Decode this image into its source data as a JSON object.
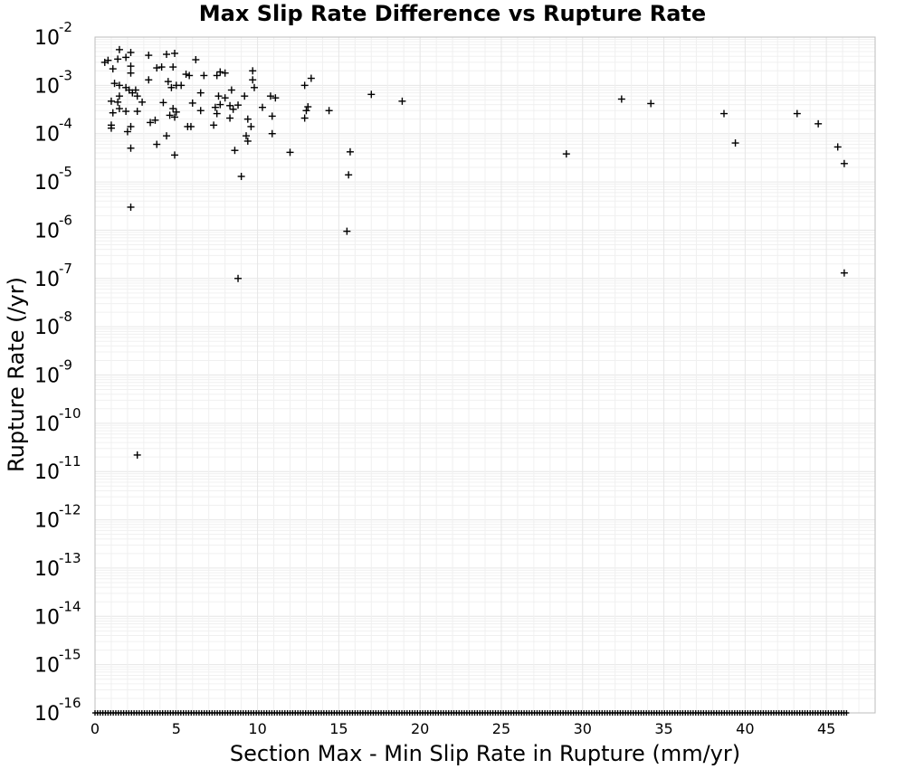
{
  "chart_data": {
    "type": "scatter",
    "title": "Max Slip Rate Difference vs Rupture Rate",
    "xlabel": "Section Max - Min Slip Rate in Rupture (mm/yr)",
    "ylabel": "Rupture Rate (/yr)",
    "x_scale": "linear",
    "y_scale": "log",
    "xlim": [
      0,
      48
    ],
    "ylim": [
      1e-16,
      0.01
    ],
    "x_ticks": [
      "0",
      "5",
      "10",
      "15",
      "20",
      "25",
      "30",
      "35",
      "40",
      "45"
    ],
    "y_ticks": [
      {
        "base": "10",
        "exp": "-16"
      },
      {
        "base": "10",
        "exp": "-15"
      },
      {
        "base": "10",
        "exp": "-14"
      },
      {
        "base": "10",
        "exp": "-13"
      },
      {
        "base": "10",
        "exp": "-12"
      },
      {
        "base": "10",
        "exp": "-11"
      },
      {
        "base": "10",
        "exp": "-10"
      },
      {
        "base": "10",
        "exp": "-9"
      },
      {
        "base": "10",
        "exp": "-8"
      },
      {
        "base": "10",
        "exp": "-7"
      },
      {
        "base": "10",
        "exp": "-6"
      },
      {
        "base": "10",
        "exp": "-5"
      },
      {
        "base": "10",
        "exp": "-4"
      },
      {
        "base": "10",
        "exp": "-3"
      },
      {
        "base": "10",
        "exp": "-2"
      }
    ],
    "grid": true,
    "marker": "+",
    "marker_color": "#000000",
    "points": [
      [
        0.6,
        0.003
      ],
      [
        0.8,
        0.0033
      ],
      [
        1.1,
        0.0022
      ],
      [
        1.4,
        0.0035
      ],
      [
        1.5,
        0.0055
      ],
      [
        1.9,
        0.0038
      ],
      [
        2.2,
        0.0048
      ],
      [
        2.2,
        0.0025
      ],
      [
        2.2,
        0.0018
      ],
      [
        1.2,
        0.0011
      ],
      [
        1.5,
        0.001
      ],
      [
        1.9,
        0.0009
      ],
      [
        2.1,
        0.0008
      ],
      [
        2.3,
        0.0007
      ],
      [
        2.5,
        0.0008
      ],
      [
        2.6,
        0.0006
      ],
      [
        1.0,
        0.00047
      ],
      [
        1.4,
        0.00045
      ],
      [
        1.5,
        0.0006
      ],
      [
        1.9,
        0.00029
      ],
      [
        1.1,
        0.00027
      ],
      [
        1.5,
        0.00033
      ],
      [
        2.6,
        0.00029
      ],
      [
        1.0,
        0.00015
      ],
      [
        1.0,
        0.00013
      ],
      [
        2.0,
        0.00011
      ],
      [
        2.2,
        0.00014
      ],
      [
        2.2,
        5e-05
      ],
      [
        2.2,
        3e-06
      ],
      [
        2.6,
        2.2e-11
      ],
      [
        3.3,
        0.0042
      ],
      [
        3.3,
        0.0013
      ],
      [
        3.8,
        0.0023
      ],
      [
        4.1,
        0.0024
      ],
      [
        4.4,
        0.0044
      ],
      [
        4.5,
        0.0012
      ],
      [
        4.8,
        0.0024
      ],
      [
        4.9,
        0.0046
      ],
      [
        4.7,
        0.0009
      ],
      [
        5.0,
        0.001
      ],
      [
        5.3,
        0.001
      ],
      [
        5.6,
        0.0017
      ],
      [
        5.8,
        0.0016
      ],
      [
        6.2,
        0.0034
      ],
      [
        6.5,
        0.0007
      ],
      [
        6.7,
        0.0016
      ],
      [
        7.5,
        0.0016
      ],
      [
        7.7,
        0.0019
      ],
      [
        8.0,
        0.0018
      ],
      [
        2.9,
        0.00045
      ],
      [
        3.4,
        0.00017
      ],
      [
        3.7,
        0.00019
      ],
      [
        4.2,
        0.00044
      ],
      [
        4.6,
        0.00024
      ],
      [
        4.8,
        0.00033
      ],
      [
        4.9,
        0.00022
      ],
      [
        5.0,
        0.00028
      ],
      [
        4.4,
        9e-05
      ],
      [
        3.8,
        6e-05
      ],
      [
        4.9,
        3.6e-05
      ],
      [
        5.7,
        0.00014
      ],
      [
        5.9,
        0.00014
      ],
      [
        6.0,
        0.00043
      ],
      [
        6.5,
        0.0003
      ],
      [
        7.3,
        0.00015
      ],
      [
        7.4,
        0.00035
      ],
      [
        7.5,
        0.00026
      ],
      [
        7.7,
        0.0004
      ],
      [
        7.6,
        0.0006
      ],
      [
        8.0,
        0.00055
      ],
      [
        8.4,
        0.0008
      ],
      [
        8.3,
        0.00038
      ],
      [
        8.5,
        0.00032
      ],
      [
        8.8,
        0.00039
      ],
      [
        8.3,
        0.00021
      ],
      [
        8.6,
        4.5e-05
      ],
      [
        9.2,
        0.0006
      ],
      [
        9.4,
        0.0002
      ],
      [
        9.3,
        9e-05
      ],
      [
        9.4,
        7e-05
      ],
      [
        9.6,
        0.00014
      ],
      [
        9.8,
        0.0009
      ],
      [
        9.7,
        0.0013
      ],
      [
        9.7,
        0.002
      ],
      [
        9.0,
        1.3e-05
      ],
      [
        8.8,
        1e-07
      ],
      [
        10.3,
        0.00035
      ],
      [
        10.8,
        0.0006
      ],
      [
        10.9,
        0.00023
      ],
      [
        10.9,
        0.0001
      ],
      [
        11.1,
        0.00055
      ],
      [
        12.0,
        4.1e-05
      ],
      [
        12.9,
        0.001
      ],
      [
        13.3,
        0.0014
      ],
      [
        12.9,
        0.00021
      ],
      [
        13.0,
        0.0003
      ],
      [
        13.1,
        0.00036
      ],
      [
        14.4,
        0.0003
      ],
      [
        15.5,
        9.5e-07
      ],
      [
        15.6,
        1.4e-05
      ],
      [
        15.7,
        4.2e-05
      ],
      [
        17.0,
        0.00065
      ],
      [
        18.9,
        0.00047
      ],
      [
        29.0,
        3.8e-05
      ],
      [
        32.4,
        0.00052
      ],
      [
        34.2,
        0.00042
      ],
      [
        38.7,
        0.00026
      ],
      [
        39.4,
        6.4e-05
      ],
      [
        43.2,
        0.00026
      ],
      [
        44.5,
        0.00016
      ],
      [
        45.7,
        5.3e-05
      ],
      [
        46.1,
        2.4e-05
      ],
      [
        46.1,
        1.3e-07
      ]
    ],
    "zero_rate_band": {
      "y": 1e-16,
      "x_range": [
        0,
        46.3
      ]
    }
  }
}
